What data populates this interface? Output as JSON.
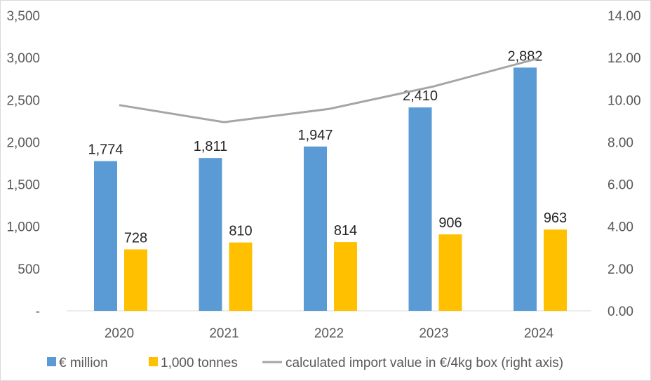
{
  "chart_data": {
    "type": "bar",
    "categories": [
      "2020",
      "2021",
      "2022",
      "2023",
      "2024"
    ],
    "series": [
      {
        "name": "€ million",
        "type": "bar",
        "axis": "left",
        "color": "#5B9BD5",
        "values": [
          1774,
          1811,
          1947,
          2410,
          2882
        ],
        "labels": [
          "1,774",
          "1,811",
          "1,947",
          "2,410",
          "2,882"
        ]
      },
      {
        "name": "1,000 tonnes",
        "type": "bar",
        "axis": "left",
        "color": "#FFC000",
        "values": [
          728,
          810,
          814,
          906,
          963
        ],
        "labels": [
          "728",
          "810",
          "814",
          "906",
          "963"
        ]
      },
      {
        "name": "calculated import value in €/4kg box (right axis)",
        "type": "line",
        "axis": "right",
        "color": "#A5A5A5",
        "values": [
          9.75,
          8.94,
          9.57,
          10.64,
          11.97
        ]
      }
    ],
    "y_left": {
      "min": 0,
      "max": 3500,
      "ticks": [
        "-",
        "500",
        "1,000",
        "1,500",
        "2,000",
        "2,500",
        "3,000",
        "3,500"
      ]
    },
    "y_right": {
      "min": 0,
      "max": 14,
      "ticks": [
        "0.00",
        "2.00",
        "4.00",
        "6.00",
        "8.00",
        "10.00",
        "12.00",
        "14.00"
      ]
    },
    "grid": false,
    "legend": "bottom"
  }
}
